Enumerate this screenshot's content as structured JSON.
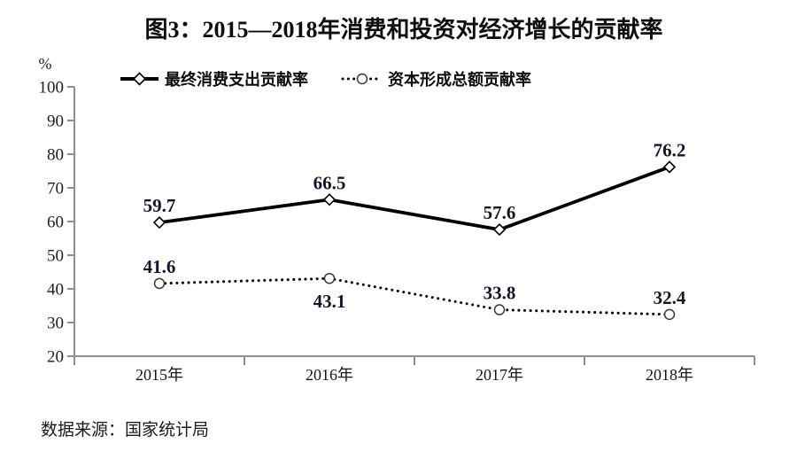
{
  "source_note": "数据来源：国家统计局",
  "chart_data": {
    "type": "line",
    "title": "图3：2015—2018年消费和投资对经济增长的贡献率",
    "unit_label": "%",
    "xlabel": "",
    "ylabel": "%",
    "categories": [
      "2015年",
      "2016年",
      "2017年",
      "2018年"
    ],
    "yticks": [
      20,
      30,
      40,
      50,
      60,
      70,
      80,
      90,
      100
    ],
    "ylim": [
      20,
      100
    ],
    "grid": false,
    "legend_position": "top",
    "axis_color": "#8e8e98",
    "point_label_color": "#15152a",
    "series": [
      {
        "name": "最终消费支出贡献率",
        "values": [
          59.7,
          66.5,
          57.6,
          76.2
        ],
        "labels": [
          "59.7",
          "66.5",
          "57.6",
          "76.2"
        ],
        "label_placement": [
          "above",
          "above",
          "above",
          "above"
        ],
        "line_style": "solid",
        "marker": "diamond",
        "color": "#000000",
        "marker_fill": "#ffffff"
      },
      {
        "name": "资本形成总额贡献率",
        "values": [
          41.6,
          43.1,
          33.8,
          32.4
        ],
        "labels": [
          "41.6",
          "43.1",
          "33.8",
          "32.4"
        ],
        "label_placement": [
          "above",
          "below",
          "above",
          "above"
        ],
        "line_style": "dotted",
        "marker": "circle",
        "color": "#000000",
        "marker_fill": "#ffffff"
      }
    ]
  }
}
